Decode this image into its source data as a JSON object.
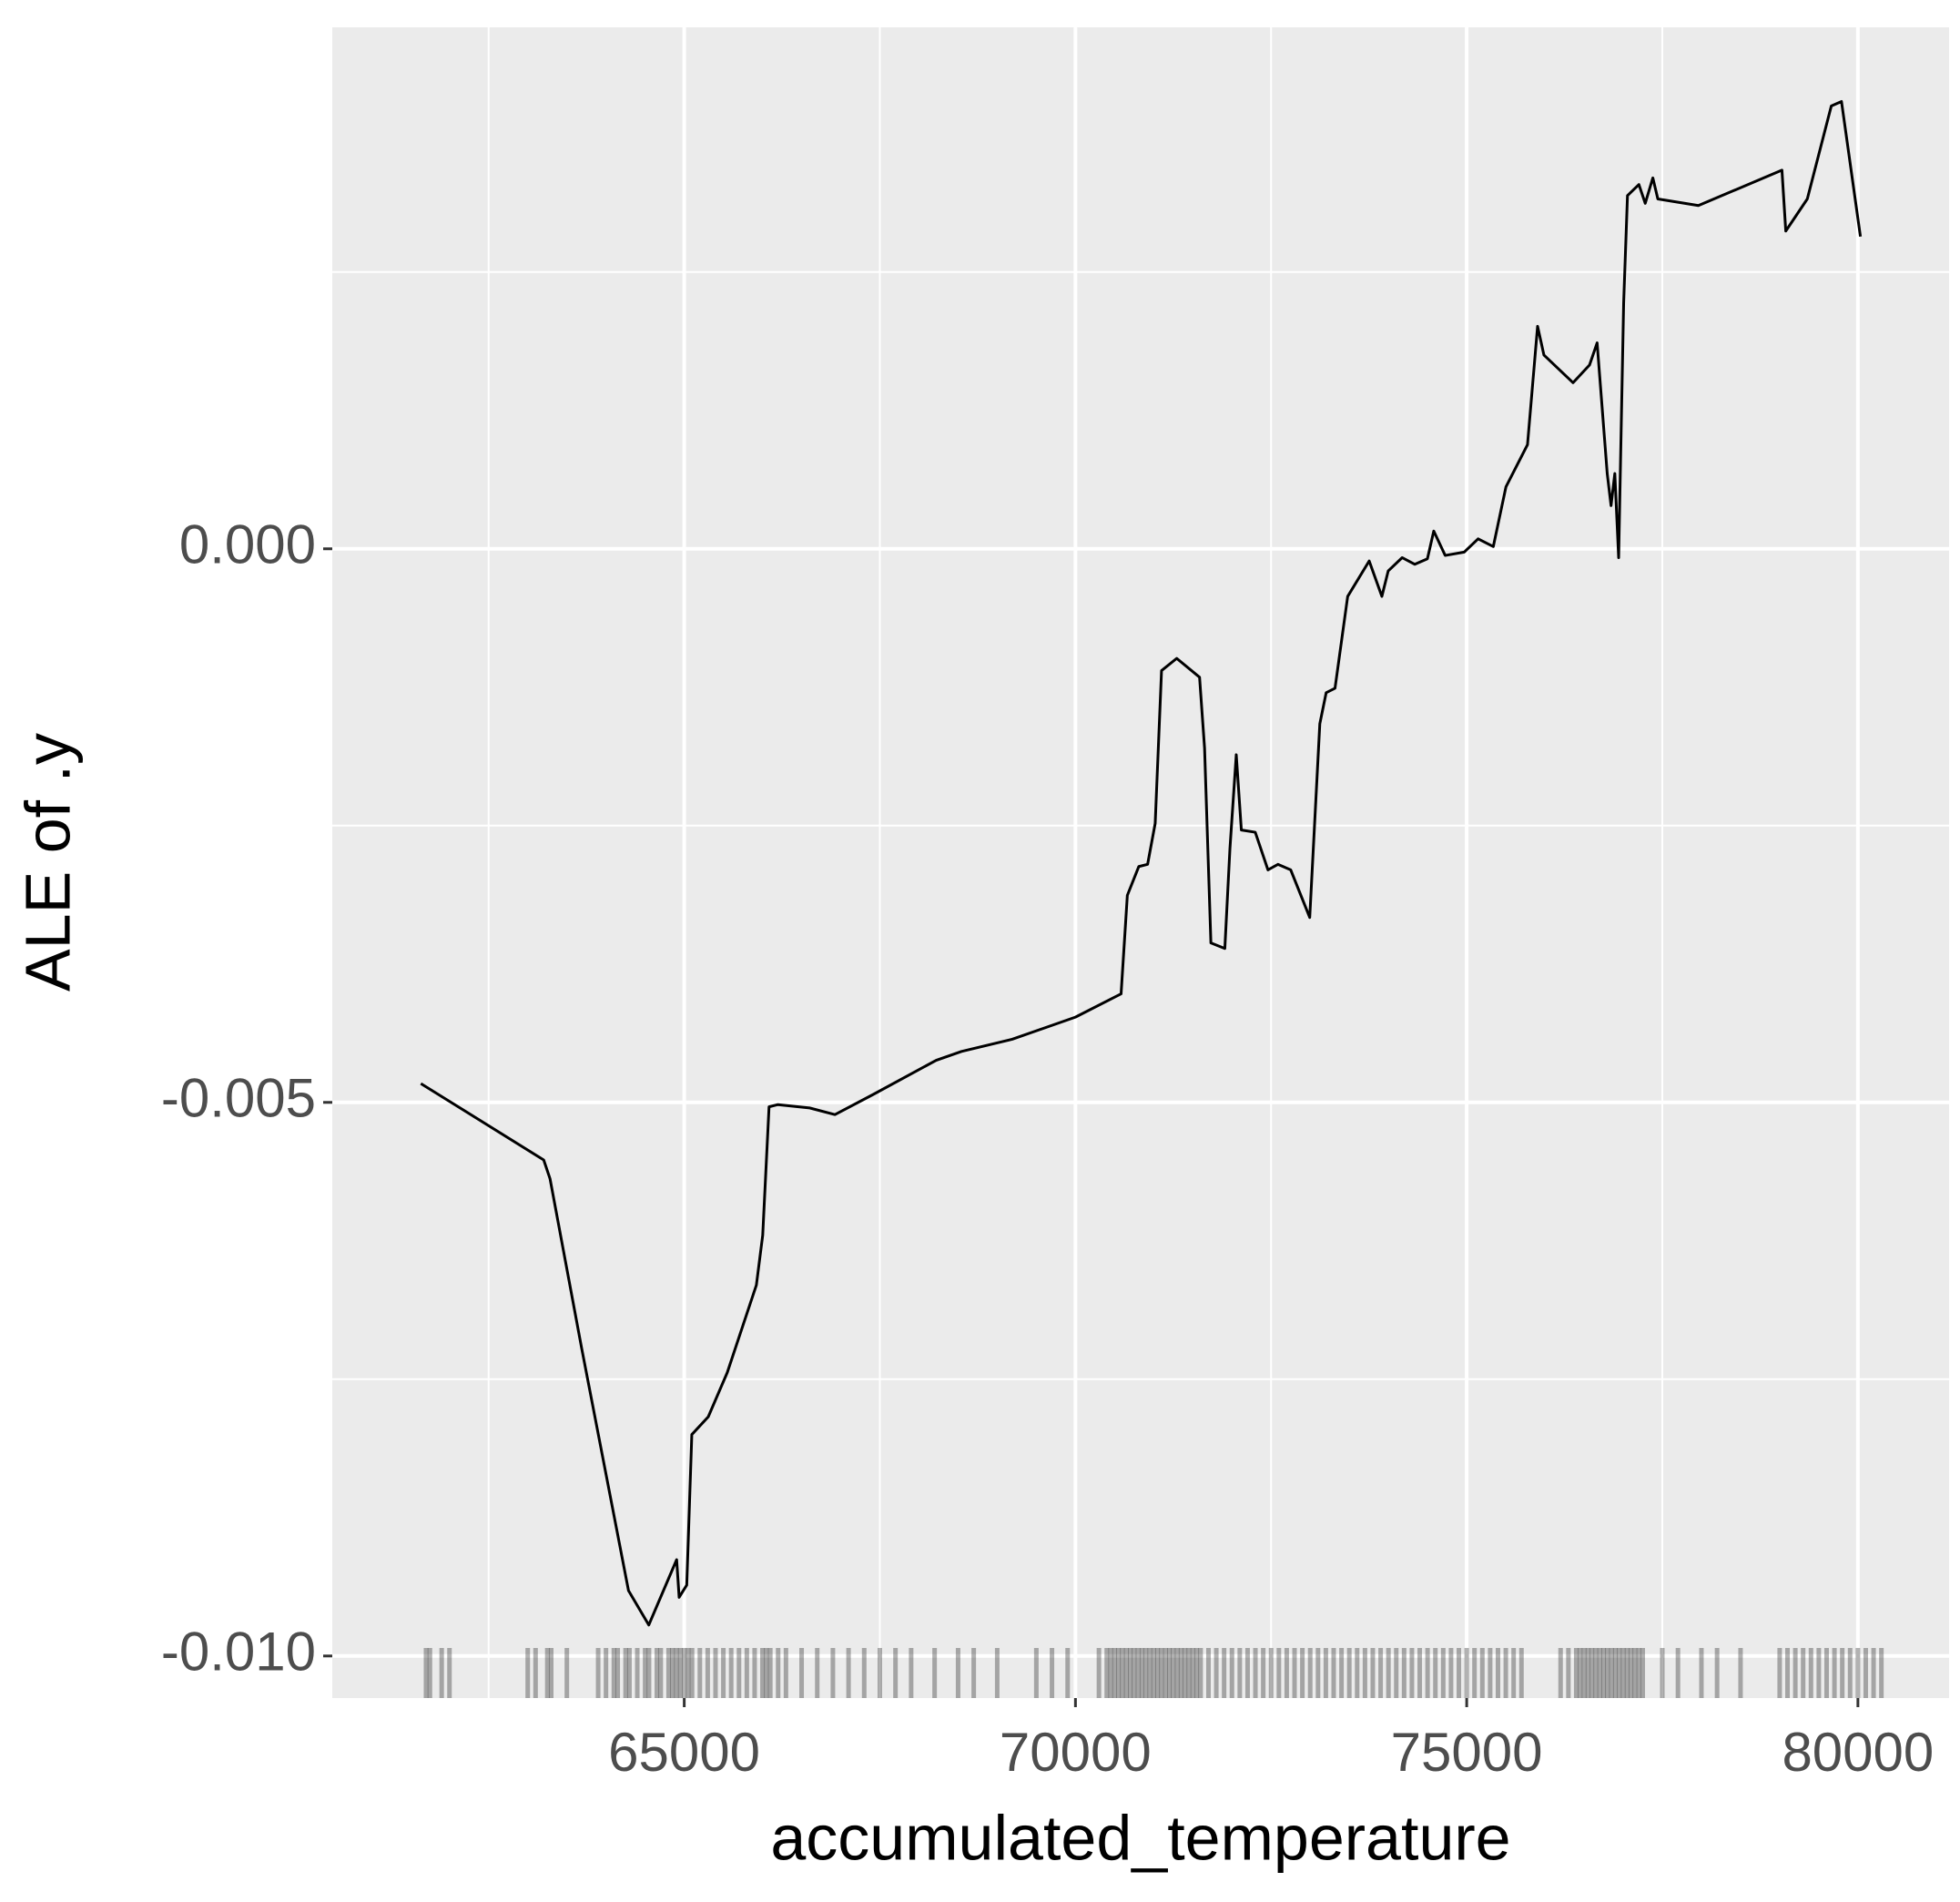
{
  "chart_data": {
    "type": "line",
    "xlabel": "accumulated_temperature",
    "ylabel": "ALE of .y",
    "color": "#000000",
    "panel_color": "#ebebeb",
    "grid": true,
    "xlim": [
      60502,
      81165
    ],
    "ylim": [
      -0.01038,
      0.00471
    ],
    "xticks": [
      65000,
      70000,
      75000,
      80000
    ],
    "yticks": [
      {
        "value": -0.01,
        "label": "-0.010"
      },
      -0.005,
      {
        "value": 0,
        "label": "0.000"
      }
    ],
    "x_minor_grid": [
      62500,
      67500,
      72500,
      77500
    ],
    "y_minor_grid": [
      -0.0075,
      -0.0025,
      0.0025
    ],
    "x": [
      61634,
      63204,
      63285,
      63689,
      64288,
      64547,
      64903,
      64935,
      65032,
      65097,
      65307,
      65550,
      65922,
      66003,
      66084,
      66197,
      66602,
      66926,
      67411,
      68220,
      68544,
      69191,
      70000,
      70583,
      70663,
      70809,
      70922,
      71019,
      71100,
      71294,
      71586,
      71650,
      71731,
      71909,
      71974,
      72055,
      72120,
      72298,
      72460,
      72589,
      72751,
      72994,
      73123,
      73204,
      73317,
      73479,
      73754,
      73916,
      73997,
      74175,
      74337,
      74498,
      74579,
      74725,
      74968,
      75146,
      75340,
      75502,
      75777,
      75906,
      75987,
      76359,
      76570,
      76667,
      76796,
      76845,
      76893,
      76942,
      77006,
      77055,
      77201,
      77282,
      77379,
      77443,
      77961,
      79029,
      79078,
      79353,
      79660,
      79790,
      80032
    ],
    "values": [
      -0.00483,
      -0.00552,
      -0.00569,
      -0.00722,
      -0.00941,
      -0.00972,
      -0.00913,
      -0.00947,
      -0.00936,
      -0.008,
      -0.00784,
      -0.00744,
      -0.00665,
      -0.0062,
      -0.00504,
      -0.00502,
      -0.00505,
      -0.00511,
      -0.00493,
      -0.00462,
      -0.00454,
      -0.00443,
      -0.00423,
      -0.00402,
      -0.00313,
      -0.00287,
      -0.00285,
      -0.00248,
      -0.0011,
      -0.00099,
      -0.00116,
      -0.0018,
      -0.00356,
      -0.00361,
      -0.00271,
      -0.00186,
      -0.00254,
      -0.00256,
      -0.0029,
      -0.00285,
      -0.0029,
      -0.00333,
      -0.00158,
      -0.0013,
      -0.00126,
      -0.00043,
      -0.00011,
      -0.00043,
      -0.0002,
      -8e-05,
      -0.00014,
      -9e-05,
      0.00016,
      -6e-05,
      -3e-05,
      9e-05,
      2e-05,
      0.00056,
      0.00094,
      0.00201,
      0.00175,
      0.0015,
      0.00166,
      0.00186,
      0.00068,
      0.00039,
      0.00068,
      -8e-05,
      0.00222,
      0.00319,
      0.00329,
      0.00312,
      0.00335,
      0.00316,
      0.0031,
      0.00342,
      0.00287,
      0.00316,
      0.004,
      0.00404,
      0.00282
    ],
    "rug": [
      61700,
      61750,
      61900,
      62000,
      63000,
      63100,
      63250,
      63300,
      63500,
      63900,
      64000,
      64100,
      64150,
      64250,
      64300,
      64400,
      64500,
      64550,
      64650,
      64700,
      64800,
      64850,
      64900,
      64950,
      65000,
      65050,
      65100,
      65200,
      65300,
      65400,
      65500,
      65600,
      65700,
      65800,
      65900,
      66000,
      66050,
      66100,
      66200,
      66300,
      66500,
      66700,
      66900,
      67100,
      67300,
      67500,
      67700,
      67900,
      68200,
      68500,
      68700,
      69000,
      69500,
      69700,
      69900,
      70300,
      70400,
      70450,
      70500,
      70550,
      70600,
      70650,
      70700,
      70750,
      70800,
      70850,
      70900,
      70950,
      71000,
      71050,
      71100,
      71150,
      71200,
      71250,
      71300,
      71350,
      71400,
      71450,
      71500,
      71550,
      71600,
      71700,
      71800,
      71900,
      72000,
      72100,
      72200,
      72300,
      72400,
      72500,
      72600,
      72700,
      72800,
      72900,
      73000,
      73100,
      73200,
      73300,
      73400,
      73500,
      73600,
      73700,
      73800,
      73900,
      74000,
      74100,
      74200,
      74300,
      74400,
      74500,
      74600,
      74700,
      74800,
      74900,
      75000,
      75100,
      75200,
      75300,
      75400,
      75500,
      75600,
      75700,
      76200,
      76300,
      76400,
      76450,
      76500,
      76550,
      76600,
      76650,
      76700,
      76750,
      76800,
      76850,
      76900,
      76950,
      77000,
      77050,
      77100,
      77150,
      77200,
      77250,
      77500,
      77700,
      78000,
      78200,
      78500,
      79000,
      79100,
      79200,
      79300,
      79400,
      79500,
      79600,
      79700,
      79800,
      79900,
      80000,
      80100,
      80200,
      80300
    ]
  }
}
